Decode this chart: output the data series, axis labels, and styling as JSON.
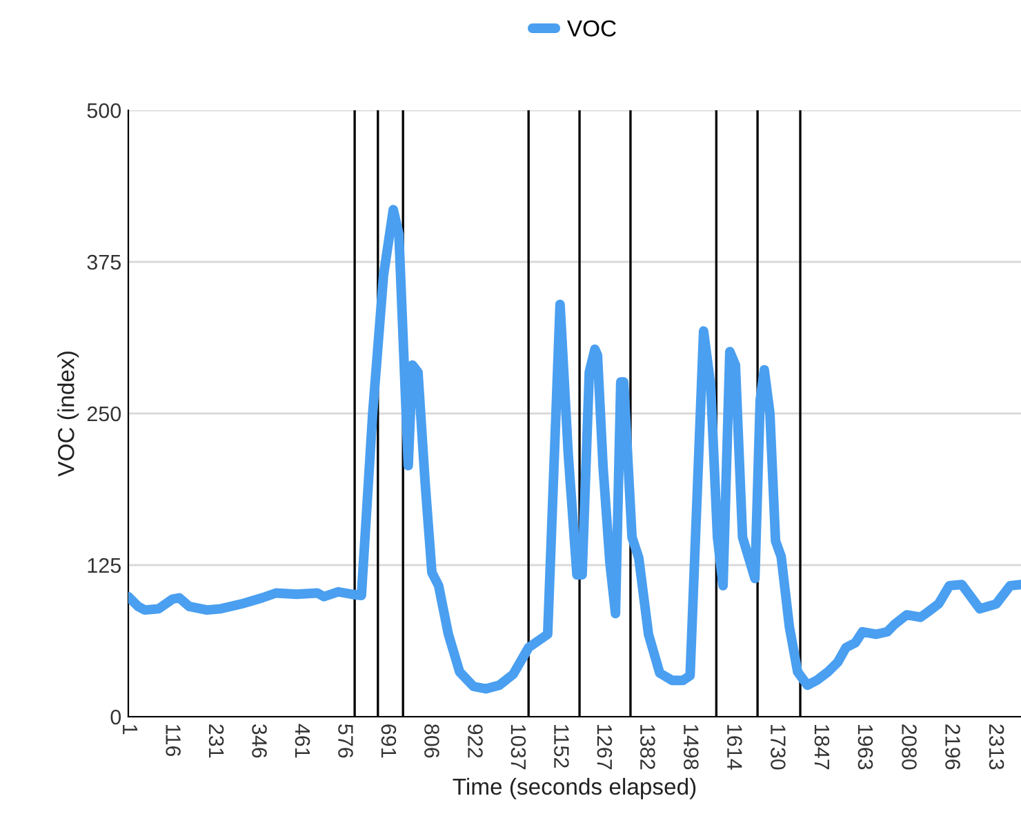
{
  "chart_data": {
    "type": "line",
    "xlabel": "Time (seconds elapsed)",
    "ylabel": "VOC (index)",
    "x": [
      1,
      27,
      45,
      82,
      119,
      137,
      163,
      211,
      248,
      303,
      358,
      395,
      450,
      505,
      523,
      561,
      597,
      623,
      653,
      682,
      708,
      723,
      748,
      759,
      774,
      793,
      811,
      829,
      855,
      885,
      922,
      955,
      991,
      1028,
      1069,
      1106,
      1120,
      1153,
      1157,
      1175,
      1198,
      1212,
      1231,
      1246,
      1253,
      1268,
      1286,
      1301,
      1315,
      1323,
      1345,
      1363,
      1389,
      1419,
      1452,
      1481,
      1500,
      1536,
      1555,
      1573,
      1588,
      1606,
      1621,
      1640,
      1673,
      1687,
      1698,
      1713,
      1728,
      1743,
      1765,
      1787,
      1813,
      1838,
      1868,
      1894,
      1916,
      1941,
      1960,
      1997,
      2026,
      2045,
      2078,
      2115,
      2133,
      2163,
      2192,
      2225,
      2273,
      2317,
      2354,
      2383
    ],
    "series": [
      {
        "name": "VOC",
        "color": "#4a9ff0",
        "values": [
          99,
          91,
          88,
          89,
          97,
          98,
          91,
          88,
          89,
          93,
          98,
          102,
          101,
          102,
          99,
          103,
          101,
          100,
          250,
          364,
          418,
          398,
          207,
          290,
          284,
          193,
          119,
          108,
          68,
          37,
          25,
          23,
          26,
          35,
          57,
          65,
          68,
          340,
          318,
          216,
          117,
          117,
          284,
          303,
          298,
          205,
          127,
          85,
          276,
          276,
          148,
          131,
          68,
          36,
          30,
          30,
          34,
          318,
          273,
          148,
          108,
          301,
          290,
          148,
          114,
          261,
          286,
          250,
          145,
          132,
          74,
          37,
          26,
          30,
          37,
          45,
          57,
          61,
          70,
          68,
          70,
          76,
          84,
          82,
          86,
          93,
          108,
          109,
          89,
          93,
          108,
          109
        ]
      }
    ],
    "xlim": [
      1,
      2383
    ],
    "xticks": [
      1,
      116,
      231,
      346,
      461,
      576,
      691,
      806,
      922,
      1037,
      1152,
      1267,
      1382,
      1498,
      1614,
      1730,
      1847,
      1963,
      2080,
      2196,
      2313
    ],
    "ylim": [
      0,
      500
    ],
    "yticks": [
      0,
      125,
      250,
      375,
      500
    ],
    "grid": "y",
    "legend": "top",
    "marker": "none",
    "line_style": "solid",
    "ref_lines": [
      {
        "axis": "x",
        "value": 605,
        "color": "#000000"
      },
      {
        "axis": "x",
        "value": 667,
        "color": "#000000"
      },
      {
        "axis": "x",
        "value": 734,
        "color": "#000000"
      },
      {
        "axis": "x",
        "value": 1069,
        "color": "#000000"
      },
      {
        "axis": "x",
        "value": 1205,
        "color": "#000000"
      },
      {
        "axis": "x",
        "value": 1341,
        "color": "#000000"
      },
      {
        "axis": "x",
        "value": 1570,
        "color": "#000000"
      },
      {
        "axis": "x",
        "value": 1680,
        "color": "#000000"
      },
      {
        "axis": "x",
        "value": 1794,
        "color": "#000000"
      }
    ]
  }
}
